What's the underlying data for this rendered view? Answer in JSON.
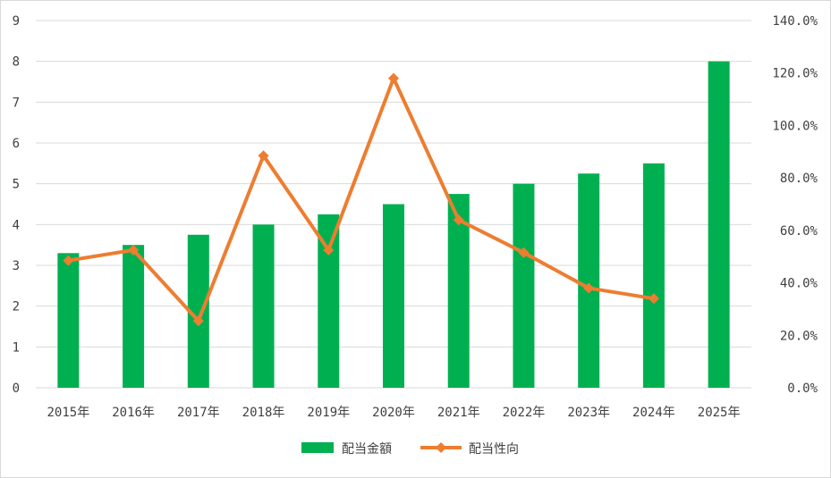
{
  "chart_data": {
    "type": "bar",
    "categories": [
      "2015年",
      "2016年",
      "2017年",
      "2018年",
      "2019年",
      "2020年",
      "2021年",
      "2022年",
      "2023年",
      "2024年",
      "2025年"
    ],
    "series": [
      {
        "name": "配当金額",
        "type": "bar",
        "axis": "left",
        "color": "#00b050",
        "values": [
          3.3,
          3.5,
          3.75,
          4.0,
          4.25,
          4.5,
          4.75,
          5.0,
          5.25,
          5.5,
          8.0
        ]
      },
      {
        "name": "配当性向",
        "type": "line",
        "axis": "right",
        "color": "#ed7d31",
        "marker": "diamond",
        "values": [
          48.5,
          52.5,
          25.5,
          88.5,
          52.5,
          118.0,
          64.0,
          51.5,
          38.0,
          34.0,
          null
        ]
      }
    ],
    "y_left": {
      "min": 0,
      "max": 9,
      "step": 1,
      "ticks": [
        "0",
        "1",
        "2",
        "3",
        "4",
        "5",
        "6",
        "7",
        "8",
        "9"
      ]
    },
    "y_right": {
      "min": 0,
      "max": 140,
      "step": 20,
      "ticks": [
        "0.0%",
        "20.0%",
        "40.0%",
        "60.0%",
        "80.0%",
        "100.0%",
        "120.0%",
        "140.0%"
      ]
    },
    "grid": true,
    "legend": "bottom-center",
    "title": "",
    "xlabel": "",
    "ylabel": ""
  }
}
